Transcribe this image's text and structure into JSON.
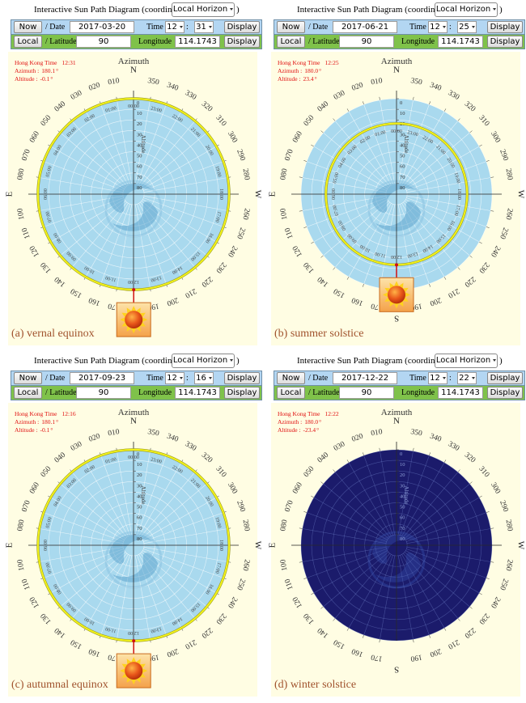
{
  "common": {
    "title": "Interactive Sun Path Diagram (coordinate :",
    "coordinate": "Local Horizon",
    "now": "Now",
    "date_label": "/ Date",
    "time_label": "Time",
    "colon": ":",
    "display": "Display",
    "local": "Local",
    "latitude_label": "/ Latitude",
    "longitude_label": "Longitude",
    "time_zone_label": "Hong Kong Time",
    "azimuth_label": "Azimuth :",
    "altitude_label": "Altitude :",
    "degree": "°",
    "azimuth_title": "Azimuth",
    "altitude_title": "Altitude",
    "compass": [
      {
        "value": 0,
        "label": "N"
      },
      {
        "value": 90,
        "label": "E"
      },
      {
        "value": 180,
        "label": "S"
      },
      {
        "value": 270,
        "label": "W"
      }
    ],
    "azimuth_ticks": [
      {
        "value": 10,
        "label": "010"
      },
      {
        "value": 20,
        "label": "020"
      },
      {
        "value": 30,
        "label": "030"
      },
      {
        "value": 40,
        "label": "040"
      },
      {
        "value": 50,
        "label": "050"
      },
      {
        "value": 60,
        "label": "060"
      },
      {
        "value": 70,
        "label": "070"
      },
      {
        "value": 80,
        "label": "080"
      },
      100,
      110,
      120,
      130,
      140,
      150,
      160,
      170,
      190,
      200,
      210,
      220,
      230,
      240,
      250,
      260,
      280,
      290,
      300,
      310,
      320,
      330,
      340,
      350
    ],
    "altitude_ticks": [
      0,
      10,
      20,
      30,
      40,
      50,
      60,
      70,
      80
    ],
    "hours": [
      "00:00",
      "01:00",
      "02:00",
      "03:00",
      "04:00",
      "05:00",
      "06:00",
      "07:00",
      "08:00",
      "09:00",
      "10:00",
      "11:00",
      "12:00",
      "13:00",
      "14:00",
      "15:00",
      "16:00",
      "17:00",
      "18:00",
      "19:00",
      "20:00",
      "21:00",
      "22:00",
      "23:00"
    ]
  },
  "panels": [
    {
      "date": "2017-03-20",
      "hour": "12",
      "minute": "31",
      "latitude": "90",
      "longitude": "114.1743",
      "time": "12:31",
      "azimuth": {
        "value": 180.1,
        "label": "180.1"
      },
      "altitude": {
        "value": -0.1,
        "label": "-0.1"
      },
      "caption": "(a) vernal equinox",
      "sky_color": "#a9d9ee",
      "path_visible": true,
      "sun_visible": true
    },
    {
      "date": "2017-06-21",
      "hour": "12",
      "minute": "25",
      "latitude": "90",
      "longitude": "114.1743",
      "time": "12:25",
      "azimuth": {
        "value": 180,
        "label": "180.0"
      },
      "altitude": {
        "value": 23.4,
        "label": "23.4"
      },
      "caption": "(b) summer solstice",
      "sky_color": "#a9d9ee",
      "path_visible": true,
      "sun_visible": true
    },
    {
      "date": "2017-09-23",
      "hour": "12",
      "minute": "16",
      "latitude": "90",
      "longitude": "114.1743",
      "time": "12:16",
      "azimuth": {
        "value": 180.1,
        "label": "180.1"
      },
      "altitude": {
        "value": -0.1,
        "label": "-0.1"
      },
      "caption": "(c) autumnal equinox",
      "sky_color": "#a9d9ee",
      "path_visible": true,
      "sun_visible": true
    },
    {
      "date": "2017-12-22",
      "hour": "12",
      "minute": "22",
      "latitude": "90",
      "longitude": "114.1743",
      "time": "12:22",
      "azimuth": {
        "value": 180,
        "label": "180.0"
      },
      "altitude": {
        "value": -23.4,
        "label": "-23.4"
      },
      "caption": "(d) winter solstice",
      "sky_color": "#1b1b6b",
      "path_visible": false,
      "sun_visible": false
    }
  ]
}
